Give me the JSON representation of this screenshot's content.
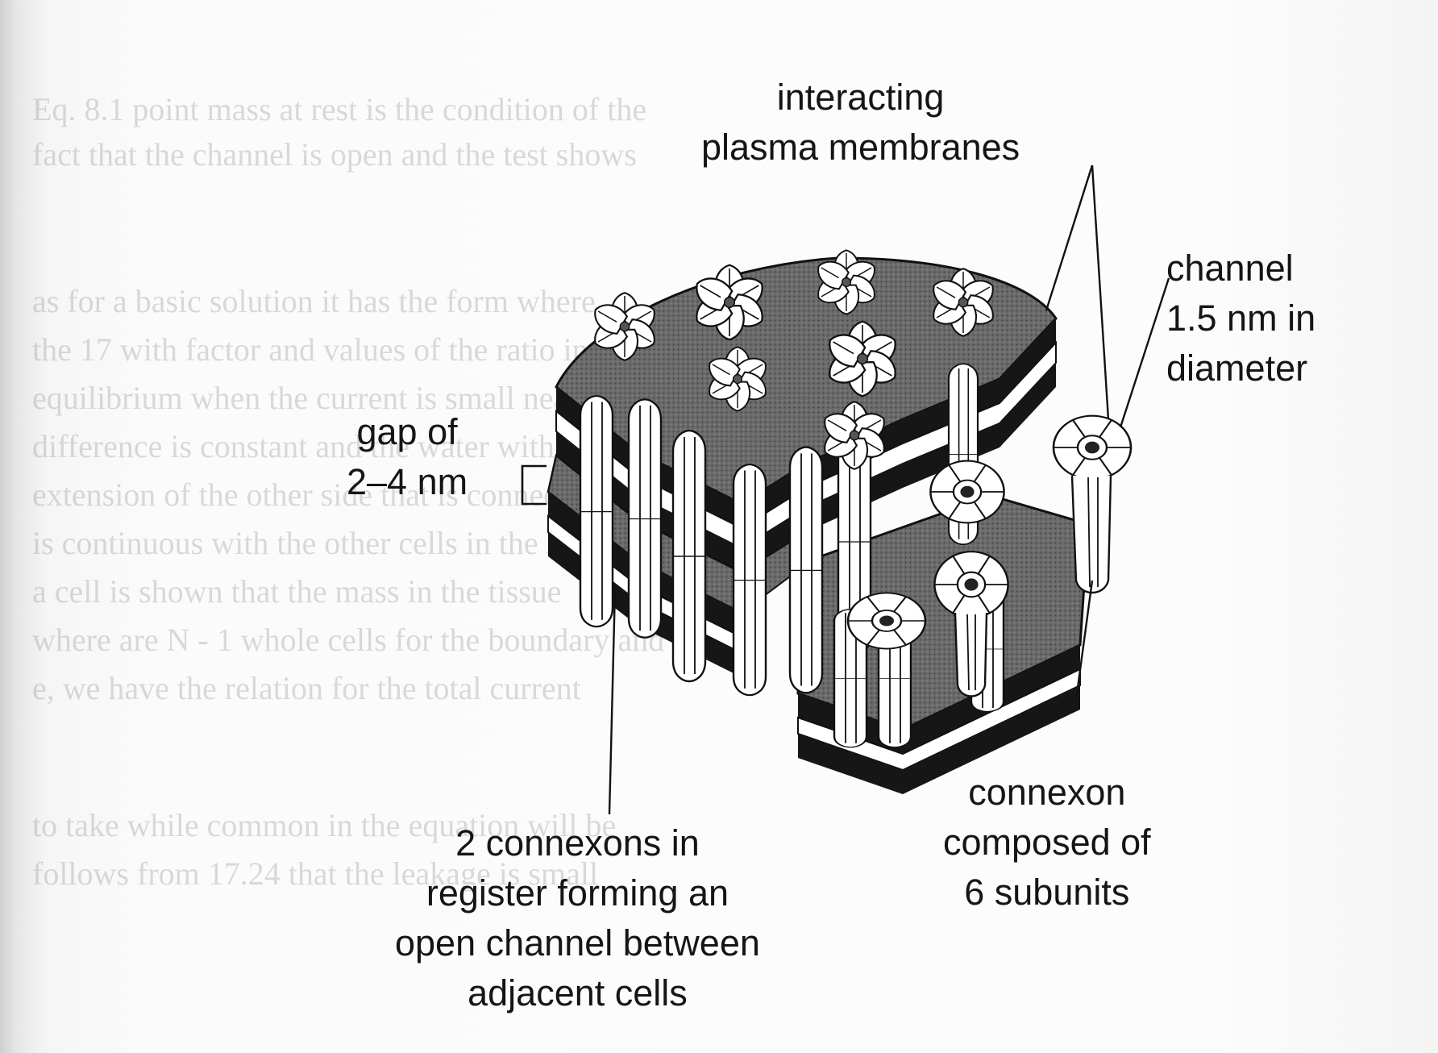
{
  "diagram": {
    "labels": {
      "interacting_membranes": [
        "interacting",
        "plasma membranes"
      ],
      "channel": [
        "channel",
        "1.5 nm in",
        "diameter"
      ],
      "gap": [
        "gap of",
        "2–4 nm"
      ],
      "two_connexons": [
        "2 connexons in",
        "register forming an",
        "open channel between",
        "adjacent cells"
      ],
      "connexon": [
        "connexon",
        "composed of",
        "6 subunits"
      ]
    },
    "colors": {
      "membrane_face": "#6c6c6c",
      "membrane_edge": "#161616",
      "line": "#111111",
      "subunit": "#ffffff"
    }
  }
}
